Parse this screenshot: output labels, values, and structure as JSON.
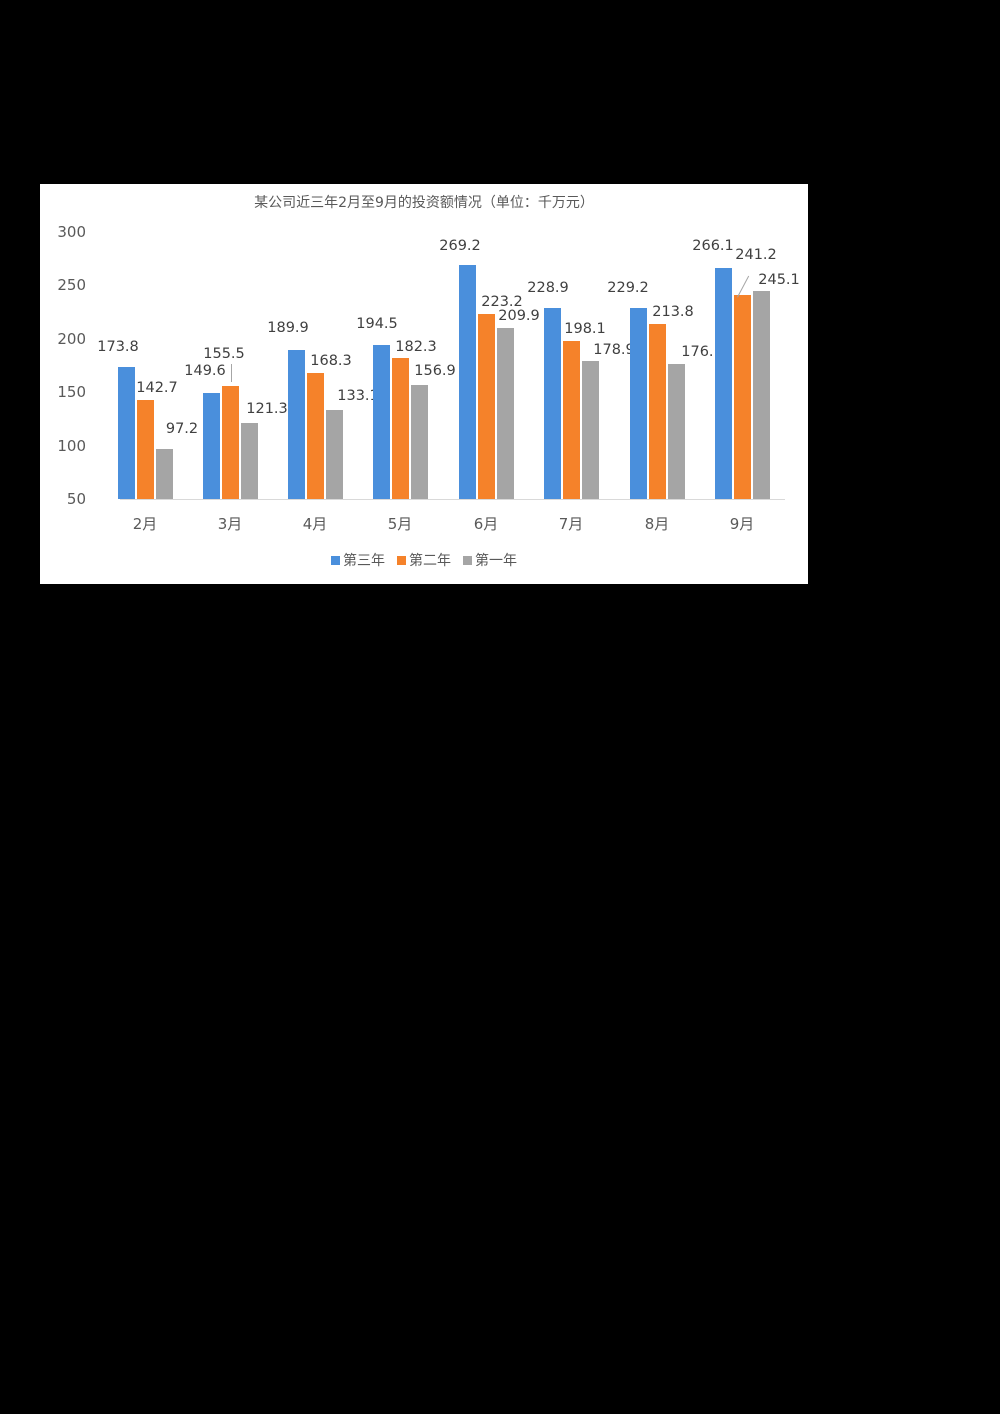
{
  "chart_data": {
    "type": "bar",
    "title": "某公司近三年2月至9月的投资额情况（单位：千万元）",
    "xlabel": "",
    "ylabel": "",
    "ylim": [
      50,
      300
    ],
    "yticks": [
      50,
      100,
      150,
      200,
      250,
      300
    ],
    "grid": false,
    "legend_position": "bottom",
    "categories": [
      "2月",
      "3月",
      "4月",
      "5月",
      "6月",
      "7月",
      "8月",
      "9月"
    ],
    "series": [
      {
        "name": "第三年",
        "color": "#4a8fdc",
        "values": [
          173.8,
          149.6,
          189.9,
          194.5,
          269.2,
          228.9,
          229.2,
          266.1
        ]
      },
      {
        "name": "第二年",
        "color": "#f5822a",
        "values": [
          142.7,
          155.5,
          168.3,
          182.3,
          223.2,
          198.1,
          213.8,
          241.2
        ]
      },
      {
        "name": "第一年",
        "color": "#a5a5a5",
        "values": [
          97.2,
          121.3,
          133.1,
          156.9,
          209.9,
          178.9,
          176.1,
          245.1
        ]
      }
    ]
  }
}
